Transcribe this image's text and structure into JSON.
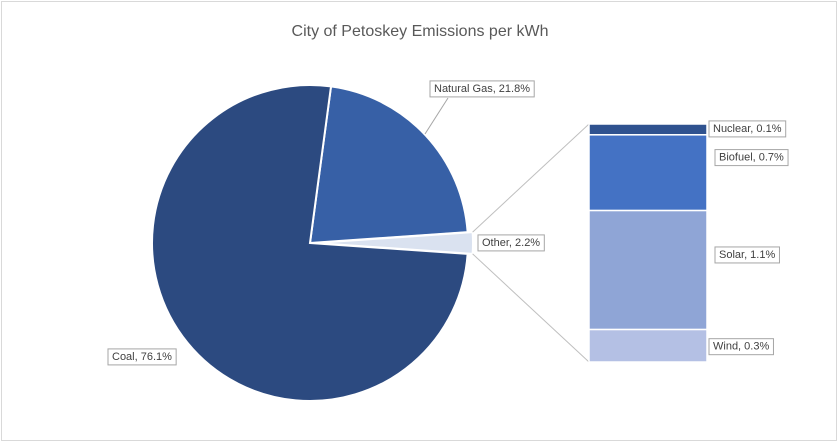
{
  "chart_data": {
    "type": "pie",
    "title": "City of Petoskey Emissions per kWh",
    "values": [
      21.8,
      2.2,
      76.1
    ],
    "value_labels": [
      "Natural Gas, 21.8%",
      "Other, 2.2%",
      "Coal, 76.1%"
    ],
    "colors": [
      "#3760a6",
      "#dae2f0",
      "#2c4a80"
    ],
    "detail": {
      "type": "bar",
      "values": [
        0.1,
        0.7,
        1.1,
        0.3
      ],
      "value_labels": [
        "Nuclear, 0.1%",
        "Biofuel, 0.7%",
        "Solar, 1.1%",
        "Wind, 0.3%"
      ],
      "colors": [
        "#2f528f",
        "#4472c4",
        "#8fa5d6",
        "#b4c0e4"
      ]
    }
  }
}
